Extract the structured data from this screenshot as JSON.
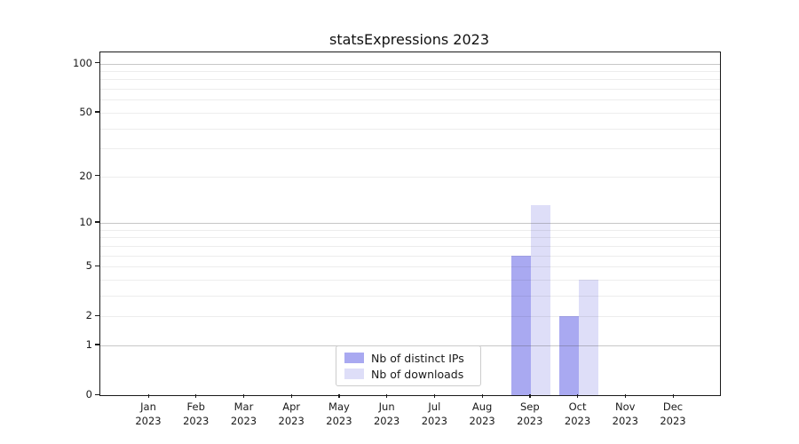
{
  "chart_data": {
    "type": "bar",
    "title": "statsExpressions 2023",
    "categories": [
      "Jan",
      "Feb",
      "Mar",
      "Apr",
      "May",
      "Jun",
      "Jul",
      "Aug",
      "Sep",
      "Oct",
      "Nov",
      "Dec"
    ],
    "category_year": "2023",
    "series": [
      {
        "name": "Nb of distinct IPs",
        "color": "#a9a9f1",
        "values": [
          0,
          0,
          0,
          0,
          0,
          0,
          0,
          0,
          6,
          2,
          0,
          0
        ]
      },
      {
        "name": "Nb of downloads",
        "color": "#dedef8",
        "values": [
          0,
          0,
          0,
          0,
          0,
          0,
          0,
          0,
          13,
          4,
          0,
          0
        ]
      }
    ],
    "y_ticks": [
      0,
      1,
      2,
      5,
      10,
      20,
      50,
      100
    ],
    "y_scale": "log1p",
    "ylim": [
      0,
      117
    ],
    "grid": true,
    "legend_position": "lower center",
    "xlabel": "",
    "ylabel": ""
  }
}
